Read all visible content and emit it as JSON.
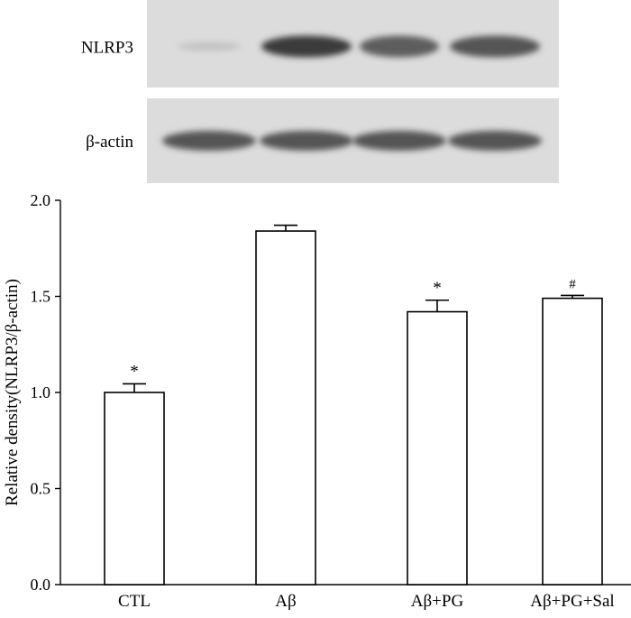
{
  "blot": {
    "bands": [
      {
        "label": "NLRP3",
        "intensities": [
          0.15,
          0.95,
          0.75,
          0.8
        ]
      },
      {
        "label": "β-actin",
        "intensities": [
          0.8,
          0.8,
          0.8,
          0.8
        ]
      }
    ]
  },
  "chart_data": {
    "type": "bar",
    "categories": [
      "CTL",
      "Aβ",
      "Aβ+PG",
      "Aβ+PG+Sal"
    ],
    "values": [
      1.0,
      1.84,
      1.42,
      1.49
    ],
    "errors": [
      0.045,
      0.03,
      0.06,
      0.015
    ],
    "annotations": [
      "*",
      "",
      "*",
      "#"
    ],
    "xlabel": "",
    "ylabel": "Relative density(NLRP3/β-actin)",
    "ylim": [
      0,
      2.0
    ],
    "yticks": [
      "0.0",
      "0.5",
      "1.0",
      "1.5",
      "2.0"
    ],
    "ytick_values": [
      0,
      0.5,
      1.0,
      1.5,
      2.0
    ],
    "grid": false,
    "bar_fill": "#ffffff",
    "bar_stroke": "#000000"
  }
}
